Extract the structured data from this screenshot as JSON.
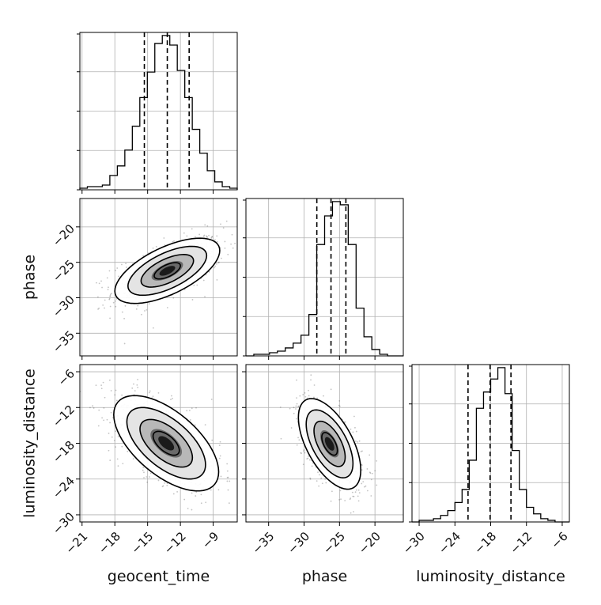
{
  "chart_data": {
    "type": "corner",
    "parameters": [
      "geocent_time",
      "phase",
      "luminosity_distance"
    ],
    "ranges": {
      "geocent_time": [
        -21.2,
        -6.8
      ],
      "phase": [
        -38.2,
        -16.0
      ],
      "luminosity_distance": [
        -31.2,
        -4.8
      ]
    },
    "ticks": {
      "geocent_time": [
        -21,
        -18,
        -15,
        -12,
        -9
      ],
      "phase": [
        -35,
        -30,
        -25,
        -20
      ],
      "luminosity_distance": [
        -30,
        -24,
        -18,
        -12,
        -6
      ]
    },
    "tick_labels": {
      "geocent_time": [
        "−21",
        "−18",
        "−15",
        "−12",
        "−9"
      ],
      "phase": [
        "−35",
        "−30",
        "−25",
        "−20"
      ],
      "luminosity_distance": [
        "−30",
        "−24",
        "−18",
        "−12",
        "−6"
      ]
    },
    "quantiles": {
      "geocent_time": [
        -15.3,
        -13.2,
        -11.2
      ],
      "phase": [
        -28.2,
        -26.2,
        -24.1
      ],
      "luminosity_distance": [
        -21.8,
        -18.1,
        -14.6
      ]
    },
    "histograms": {
      "geocent_time": {
        "edges_from": -21.2,
        "edges_to": -6.8,
        "counts": [
          1,
          2,
          2,
          3,
          9,
          15,
          25,
          40,
          58,
          74,
          92,
          97,
          91,
          75,
          58,
          38,
          23,
          12,
          5,
          2,
          1
        ]
      },
      "phase": {
        "edges_from": -38.2,
        "edges_to": -16.0,
        "counts": [
          0,
          1,
          1,
          2,
          3,
          5,
          8,
          13,
          26,
          70,
          88,
          97,
          95,
          70,
          30,
          12,
          4,
          1,
          0,
          0
        ]
      },
      "luminosity_distance": {
        "edges_from": -31.2,
        "edges_to": -4.8,
        "counts": [
          0,
          1,
          1,
          2,
          4,
          7,
          12,
          20,
          38,
          70,
          80,
          88,
          95,
          79,
          44,
          20,
          9,
          5,
          2,
          1,
          0,
          0
        ]
      }
    },
    "joint": [
      {
        "x": "geocent_time",
        "y": "phase",
        "mean": [
          -13.2,
          -26.2
        ],
        "std": [
          2.4,
          2.3
        ],
        "rho": 0.62,
        "contour_levels_sigma": [
          0.5,
          1.0,
          1.5,
          2.0
        ]
      },
      {
        "x": "geocent_time",
        "y": "luminosity_distance",
        "mean": [
          -13.3,
          -18.0
        ],
        "std": [
          2.4,
          4.0
        ],
        "rho": -0.6,
        "contour_levels_sigma": [
          0.5,
          1.0,
          1.5,
          2.0
        ]
      },
      {
        "x": "phase",
        "y": "luminosity_distance",
        "mean": [
          -26.4,
          -18.1
        ],
        "std": [
          2.2,
          3.8
        ],
        "rho": -0.58,
        "contour_levels_sigma": [
          0.5,
          1.0,
          1.5,
          2.0
        ]
      }
    ],
    "grid": true,
    "colors": {
      "line": "#000000",
      "grid": "#b0b0b0",
      "density_dark": "#000000",
      "scatter": "#555555"
    }
  }
}
